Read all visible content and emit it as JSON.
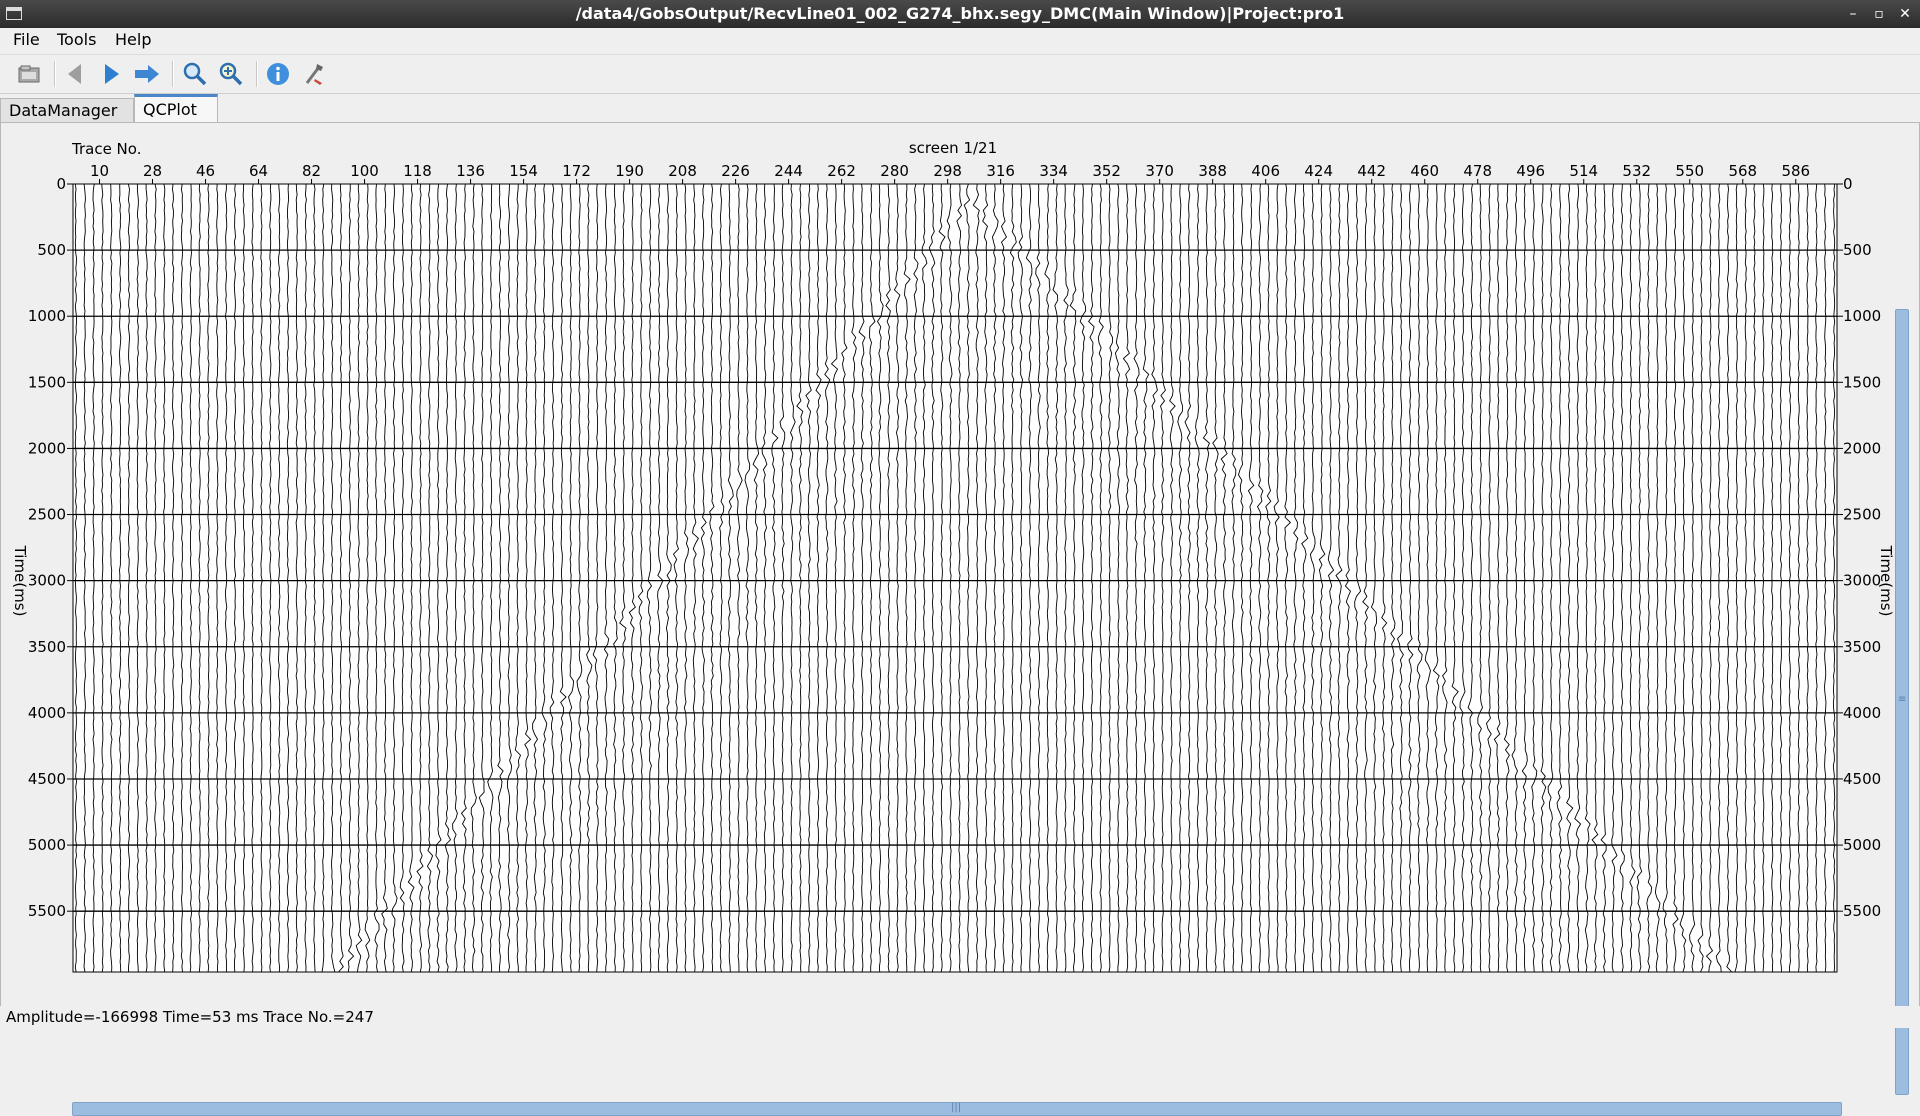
{
  "window": {
    "title": "/data4/GobsOutput/RecvLine01_002_G274_bhx.segy_DMC(Main Window)|Project:pro1",
    "controls": [
      "–",
      "▫",
      "✕"
    ]
  },
  "menu": {
    "items": [
      "File",
      "Tools",
      "Help"
    ]
  },
  "toolbar": {
    "icons": [
      "open-icon",
      "previous-icon",
      "next-icon",
      "forward-jump-icon",
      "zoom-in-icon",
      "zoom-fit-icon",
      "info-icon",
      "settings-tool-icon"
    ]
  },
  "tabs": [
    {
      "label": "DataManager",
      "active": false
    },
    {
      "label": "QCPlot",
      "active": true
    }
  ],
  "plot": {
    "x_axis_title": "Trace No.",
    "screen_label": "screen 1/21",
    "y_axis_title": "Time(ms)",
    "x_ticks": [
      "10",
      "28",
      "46",
      "64",
      "82",
      "100",
      "118",
      "136",
      "154",
      "172",
      "190",
      "208",
      "226",
      "244",
      "262",
      "280",
      "298",
      "316",
      "334",
      "352",
      "370",
      "388",
      "406",
      "424",
      "442",
      "460",
      "478",
      "496",
      "514",
      "532",
      "550",
      "568",
      "586"
    ],
    "y_ticks": [
      "0",
      "500",
      "1000",
      "1500",
      "2000",
      "2500",
      "3000",
      "3500",
      "4000",
      "4500",
      "5000",
      "5500"
    ],
    "trace_range": [
      1,
      600
    ],
    "time_range_ms": [
      0,
      5960
    ],
    "apex_trace": 306,
    "apex_time_ms": 60,
    "colors": {
      "trace": "#000000",
      "grid": "#000000",
      "background": "#ffffff",
      "scroll": "#9cbde0"
    }
  },
  "status": {
    "text": "Amplitude=-166998 Time=53 ms Trace No.=247"
  }
}
